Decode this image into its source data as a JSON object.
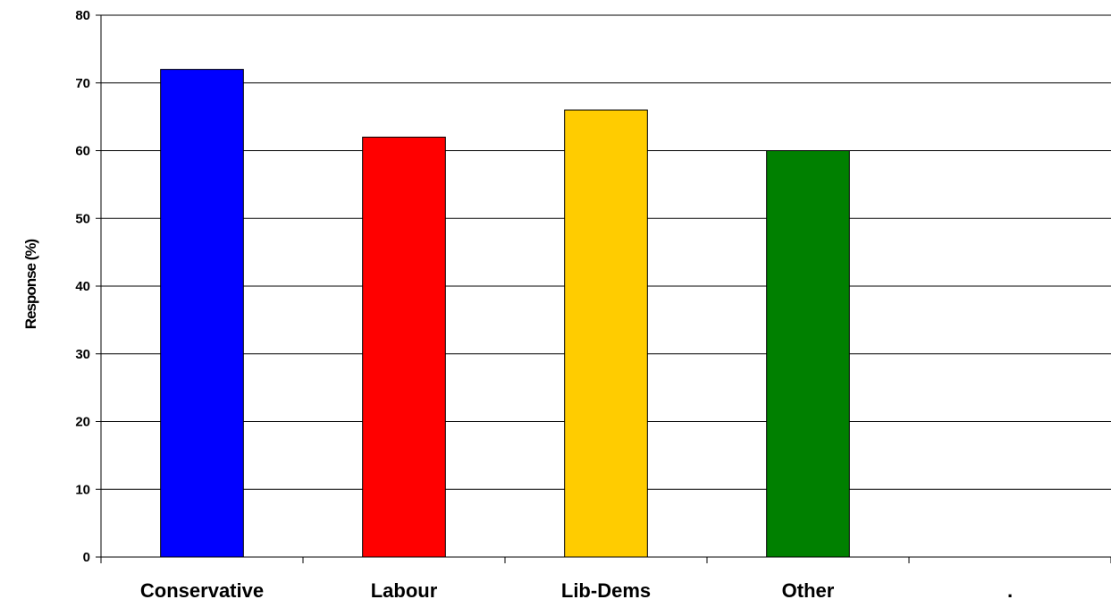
{
  "chart_data": {
    "type": "bar",
    "categories": [
      "Conservative",
      "Labour",
      "Lib-Dems",
      "Other",
      "."
    ],
    "values": [
      72,
      62,
      66,
      60,
      null
    ],
    "colors": [
      "#0000ff",
      "#ff0000",
      "#ffcc00",
      "#008000",
      null
    ],
    "title": "",
    "xlabel": "",
    "ylabel": "Response (%)",
    "ylim": [
      0,
      80
    ],
    "yticks": [
      0,
      10,
      20,
      30,
      40,
      50,
      60,
      70,
      80
    ],
    "grid": true,
    "legend": "none"
  }
}
